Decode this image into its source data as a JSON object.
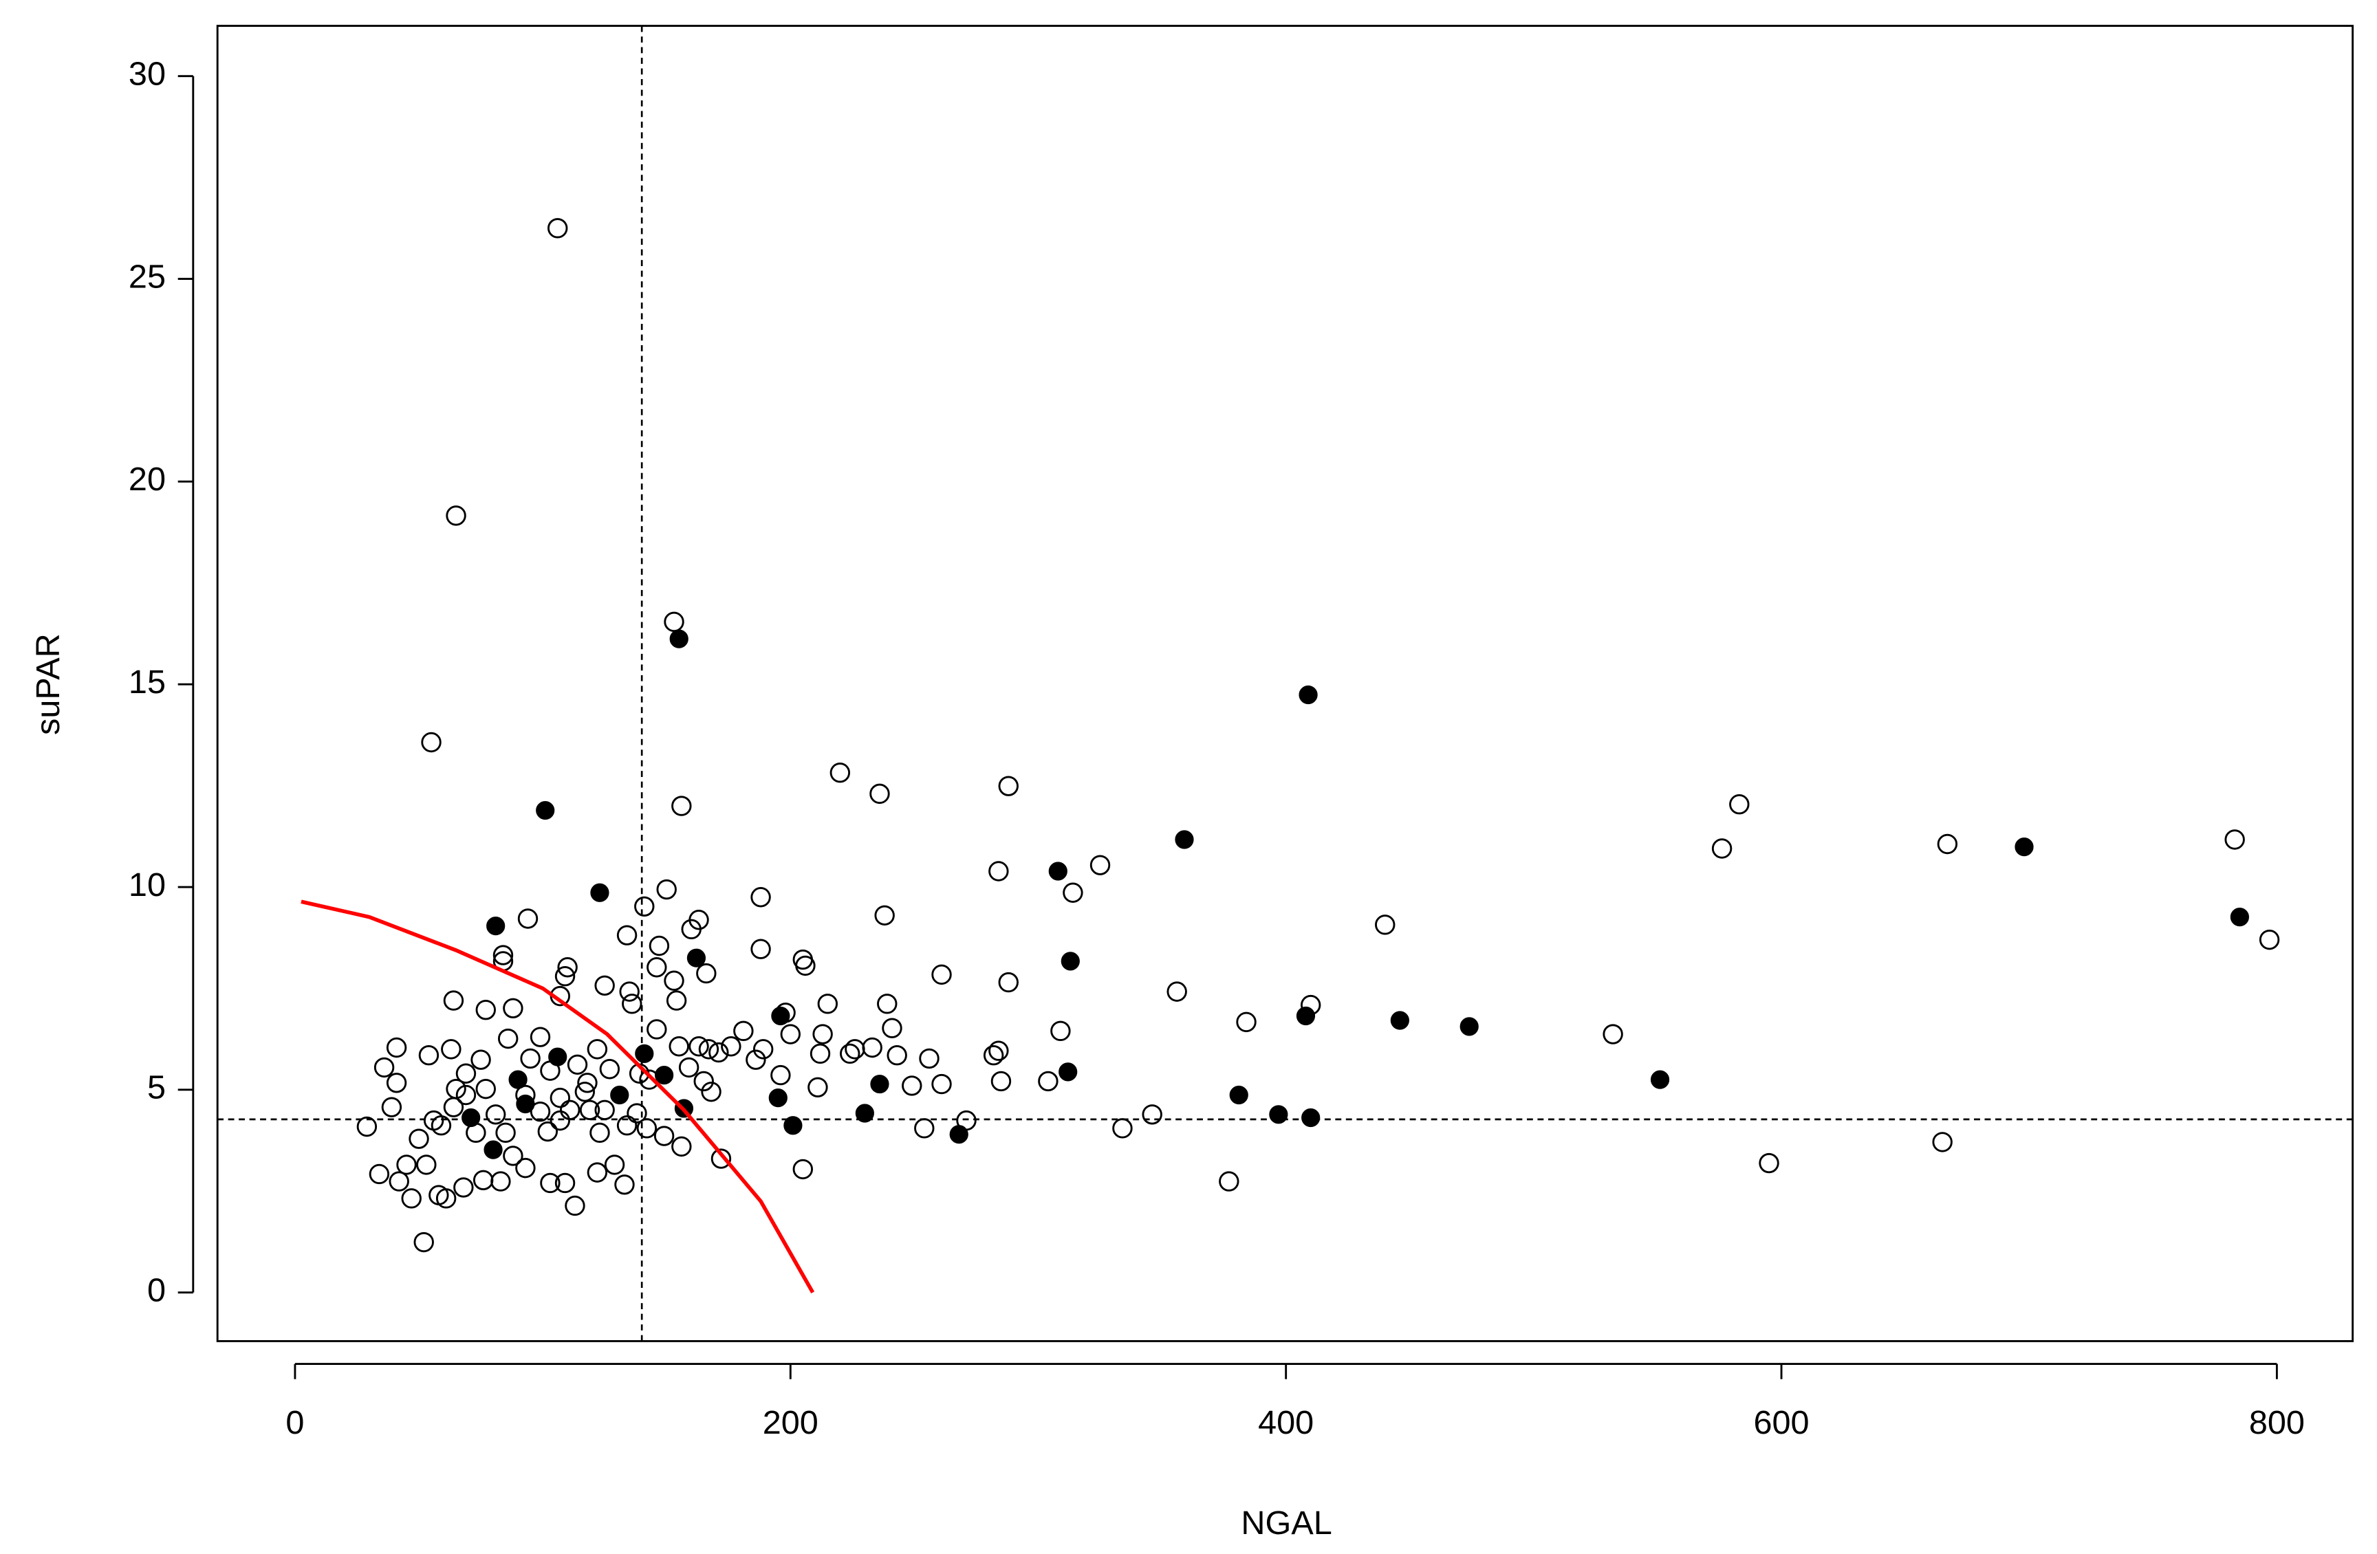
{
  "chart_data": {
    "type": "scatter",
    "x_label": "NGAL",
    "y_label": "suPAR",
    "xlim": [
      -31.3,
      830.6
    ],
    "ylim": [
      -1.2,
      31.24
    ],
    "xticks": [
      0,
      200,
      400,
      600,
      800
    ],
    "yticks": [
      0,
      5,
      10,
      15,
      20,
      25,
      30
    ],
    "vlines": [
      140
    ],
    "hlines": [
      4.27
    ],
    "curve": {
      "color": "#ff0000",
      "x": [
        2.5,
        30,
        65,
        100,
        126,
        157,
        188,
        209
      ],
      "values": [
        9.64,
        9.26,
        8.44,
        7.5,
        6.37,
        4.5,
        2.25,
        0
      ]
    },
    "series": [
      {
        "marker": "open",
        "color": "#000000",
        "x": [
          106,
          65,
          153,
          55,
          156,
          220,
          236,
          288,
          284,
          325,
          314,
          238,
          188,
          150,
          141,
          94,
          163,
          160,
          134,
          84,
          84,
          188,
          205,
          206,
          261,
          288,
          356,
          410,
          384,
          309,
          532,
          576,
          583,
          667,
          783,
          797,
          440,
          665,
          595,
          377,
          346,
          334,
          304,
          285,
          284,
          282,
          271,
          254,
          261,
          256,
          249,
          243,
          241,
          239,
          233,
          226,
          224,
          215,
          213,
          212,
          211,
          205,
          200,
          198,
          196,
          189,
          186,
          181,
          172,
          168,
          171,
          156,
          149,
          147,
          146,
          146,
          135,
          136,
          125,
          122,
          110,
          109,
          107,
          99,
          64,
          77,
          88,
          41,
          63,
          54,
          75,
          95,
          36,
          41,
          39,
          29,
          34,
          42,
          47,
          52,
          58,
          61,
          113,
          109,
          103,
          133,
          122,
          45,
          53,
          68,
          76,
          83,
          93,
          129,
          50,
          59,
          64,
          65,
          69,
          56,
          73,
          81,
          85,
          88,
          99,
          102,
          107,
          111,
          117,
          119,
          123,
          127,
          134,
          138,
          142,
          139,
          143,
          155,
          159,
          163,
          165,
          167,
          176,
          166,
          154,
          153,
          93,
          86,
          77,
          69,
          103,
          107,
          114,
          118,
          125
        ],
        "values": [
          26.25,
          19.16,
          16.54,
          13.57,
          12.0,
          12.82,
          12.3,
          12.49,
          10.39,
          10.54,
          9.86,
          9.3,
          9.75,
          9.94,
          9.52,
          9.22,
          9.19,
          8.96,
          8.81,
          8.32,
          8.17,
          8.47,
          8.21,
          8.06,
          7.84,
          7.65,
          7.42,
          7.09,
          6.67,
          6.45,
          6.37,
          10.95,
          12.04,
          11.06,
          11.17,
          8.7,
          9.07,
          3.71,
          3.19,
          2.74,
          4.39,
          4.05,
          5.21,
          5.21,
          5.96,
          5.85,
          4.24,
          4.05,
          5.14,
          5.77,
          5.1,
          5.85,
          6.52,
          7.12,
          6.04,
          6.0,
          5.89,
          7.12,
          6.37,
          5.89,
          5.06,
          3.04,
          6.37,
          6.9,
          5.36,
          6.0,
          5.74,
          6.45,
          3.3,
          4.95,
          5.92,
          3.6,
          3.86,
          8.55,
          8.02,
          6.49,
          7.42,
          7.12,
          7.57,
          6.0,
          8.02,
          7.8,
          7.31,
          6.3,
          7.2,
          6.97,
          7.01,
          6.04,
          6.0,
          5.85,
          5.74,
          5.77,
          5.55,
          5.17,
          4.57,
          4.09,
          2.92,
          2.74,
          2.32,
          1.24,
          2.4,
          2.32,
          2.14,
          2.7,
          2.7,
          2.66,
          2.96,
          3.15,
          3.15,
          2.59,
          2.77,
          2.74,
          3.07,
          3.15,
          3.79,
          4.12,
          4.57,
          5.02,
          5.4,
          4.24,
          3.94,
          4.39,
          3.94,
          3.37,
          4.46,
          3.97,
          4.24,
          4.5,
          4.95,
          4.5,
          3.94,
          5.51,
          4.12,
          4.42,
          4.05,
          5.4,
          5.25,
          6.07,
          5.55,
          6.07,
          5.21,
          6.0,
          6.07,
          7.87,
          7.2,
          7.69,
          4.87,
          6.26,
          5.02,
          4.87,
          5.47,
          4.8,
          5.62,
          5.17,
          4.5
        ]
      },
      {
        "marker": "filled",
        "color": "#000000",
        "x": [
          101,
          123,
          81,
          155,
          162,
          141,
          149,
          157,
          131,
          106,
          90,
          93,
          195,
          196,
          201,
          230,
          236,
          268,
          308,
          313,
          312,
          359,
          381,
          397,
          409,
          408,
          410,
          446,
          474,
          551,
          698,
          785,
          71,
          80
        ],
        "values": [
          11.89,
          9.86,
          9.04,
          16.12,
          8.25,
          5.89,
          5.36,
          4.54,
          4.87,
          5.81,
          5.25,
          4.65,
          4.8,
          6.82,
          4.12,
          4.42,
          5.14,
          3.9,
          10.39,
          8.17,
          5.44,
          11.17,
          4.87,
          4.39,
          14.74,
          6.82,
          4.31,
          6.71,
          6.56,
          5.25,
          10.99,
          9.26,
          4.31,
          3.52
        ]
      }
    ]
  }
}
